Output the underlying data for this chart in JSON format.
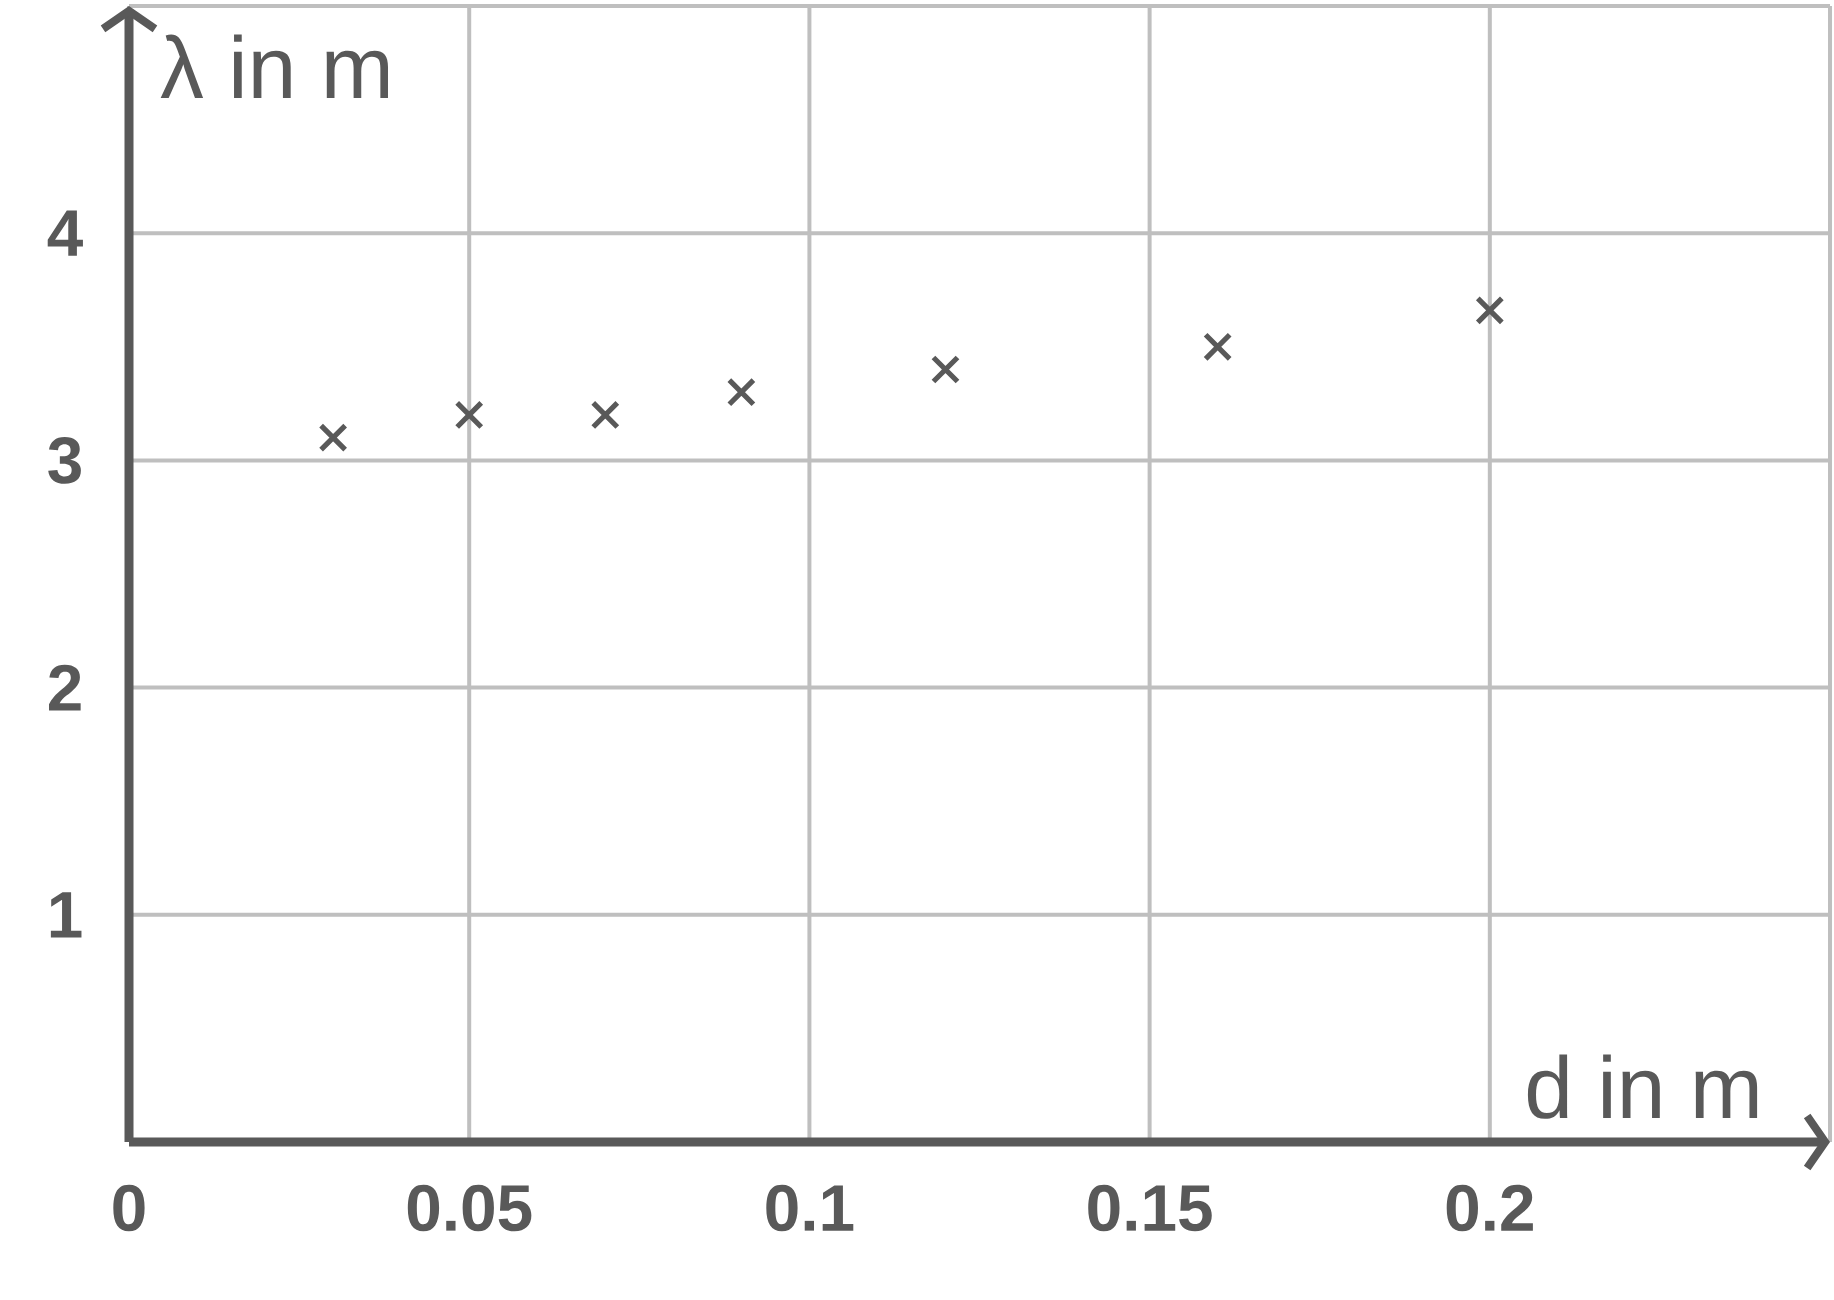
{
  "chart_data": {
    "type": "scatter",
    "xlabel": "d in m",
    "ylabel": "λ in m",
    "x": [
      0.03,
      0.05,
      0.07,
      0.09,
      0.12,
      0.16,
      0.2
    ],
    "values": [
      3.1,
      3.2,
      3.2,
      3.3,
      3.4,
      3.5,
      3.66
    ],
    "color": "#595959",
    "marker": "cross",
    "xlim": [
      0,
      0.25
    ],
    "ylim": [
      0,
      5
    ],
    "xticks": [
      {
        "value": 0,
        "label": "0"
      },
      0.05,
      0.1,
      0.15,
      0.2,
      {
        "value": 0.25,
        "label": null
      }
    ],
    "yticks": [
      1,
      2,
      3,
      4,
      {
        "value": 5,
        "label": null
      }
    ],
    "grid": true
  }
}
